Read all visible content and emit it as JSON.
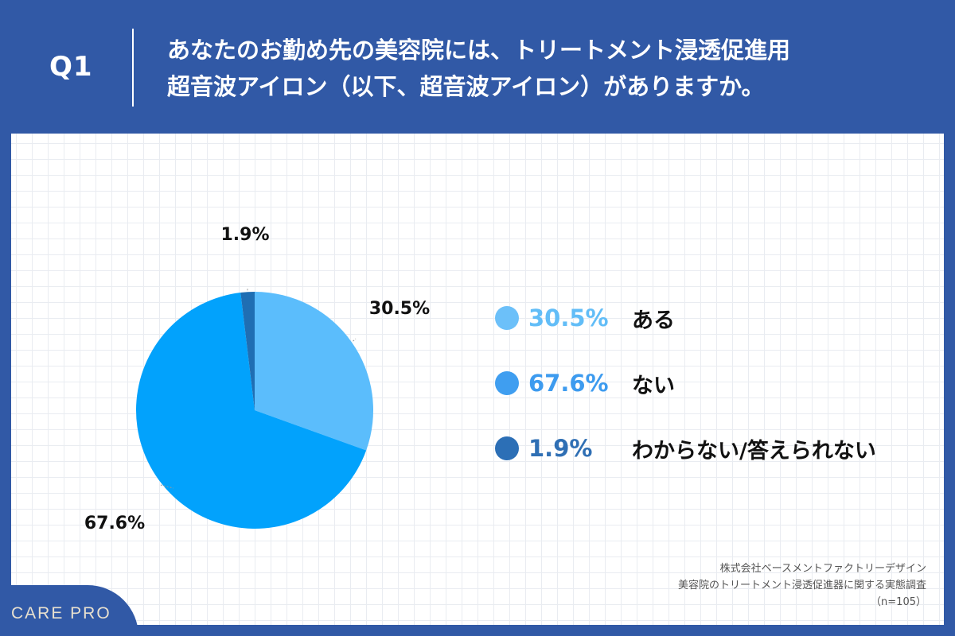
{
  "header": {
    "q_number": "Q1",
    "question_line1": "あなたのお勤め先の美容院には、トリートメント浸透促進用",
    "question_line2": "超音波アイロン（以下、超音波アイロン）がありますか。"
  },
  "chart_data": {
    "type": "pie",
    "title": "",
    "slices": [
      {
        "label": "ある",
        "value": 30.5,
        "value_label": "30.5%",
        "color": "#5bbdfc"
      },
      {
        "label": "ない",
        "value": 67.6,
        "value_label": "67.6%",
        "color": "#02a2fc"
      },
      {
        "label": "わからない/答えられない",
        "value": 1.9,
        "value_label": "1.9%",
        "color": "#1f6eb3"
      }
    ]
  },
  "legend": [
    {
      "pct": "30.5%",
      "label": "ある",
      "dot_color": "#6cc0f9",
      "text_color": "#62bdf7"
    },
    {
      "pct": "67.6%",
      "label": "ない",
      "dot_color": "#3f9ef0",
      "text_color": "#3d9bef"
    },
    {
      "pct": "1.9%",
      "label": "わからない/答えられない",
      "dot_color": "#2c6fb6",
      "text_color": "#2f6fb4"
    }
  ],
  "source": {
    "company": "株式会社ベースメントファクトリーデザイン",
    "survey": "美容院のトリートメント浸透促進器に関する実態調査",
    "n": "（n=105）"
  },
  "brand": {
    "name": "CARE PRO"
  }
}
